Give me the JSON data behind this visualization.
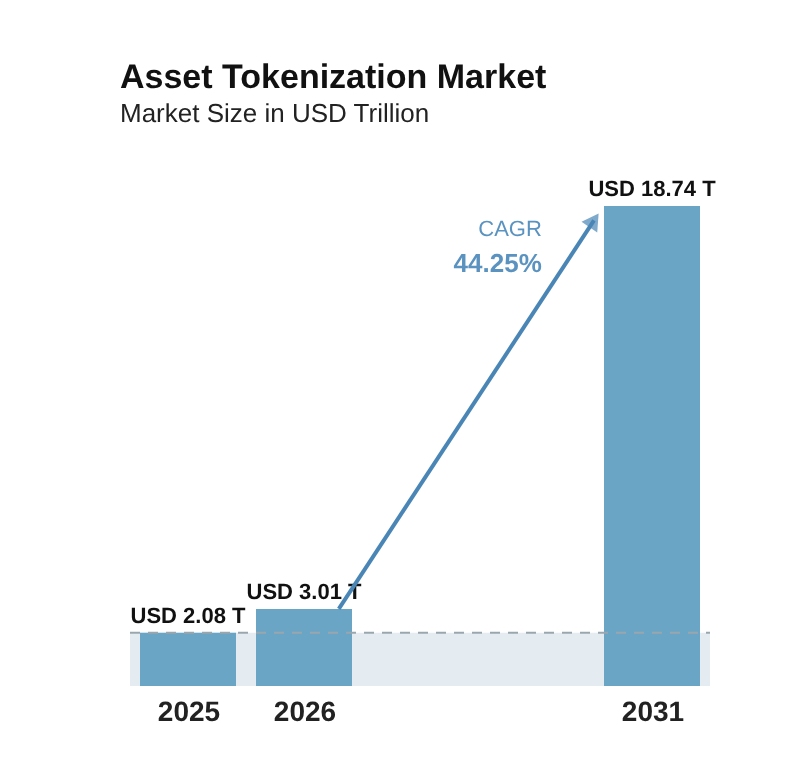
{
  "chart_data": {
    "type": "bar",
    "title": "Asset Tokenization Market",
    "subtitle": "Market Size in USD Trillion",
    "categories": [
      "2025",
      "2026",
      null,
      null,
      "2031"
    ],
    "values": [
      2.08,
      3.01,
      null,
      null,
      18.74
    ],
    "value_labels": [
      "USD 2.08 T",
      "USD 3.01 T",
      null,
      null,
      "USD 18.74 T"
    ],
    "color": "#6aa5c6",
    "annotations": [
      "CAGR",
      "44.25%"
    ],
    "ref_lines": [
      {
        "axis": "y",
        "value": 2.08,
        "color": "#9aa6ae",
        "line_style": "dashed"
      }
    ],
    "bands": [
      {
        "axis": "y",
        "from": 0,
        "to": 2.08,
        "color": "#e4ecf2"
      }
    ],
    "grid": false
  }
}
